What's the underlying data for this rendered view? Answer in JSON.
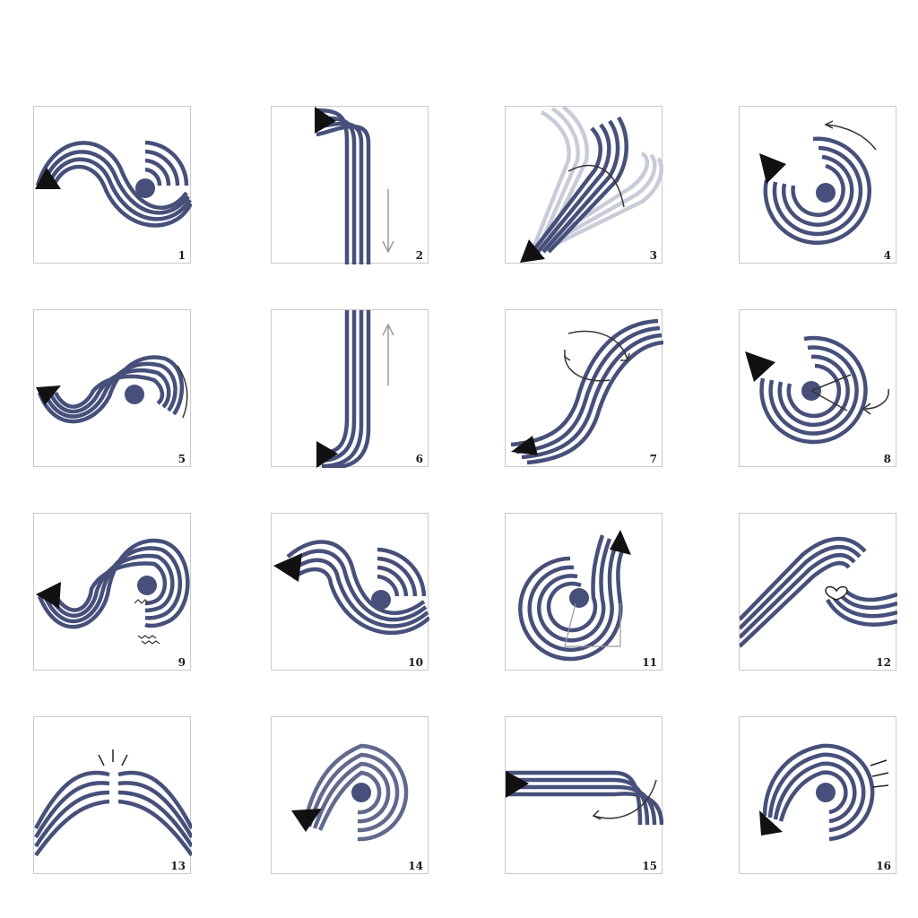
{
  "colors": {
    "stripe": "#46507a",
    "ghost": "#c9ccd8",
    "arrowhead": "#111111",
    "panel_border": "#c9c9c9",
    "note": "#555555"
  },
  "panels": [
    {
      "label": "1"
    },
    {
      "label": "2"
    },
    {
      "label": "3"
    },
    {
      "label": "4"
    },
    {
      "label": "5"
    },
    {
      "label": "6"
    },
    {
      "label": "7"
    },
    {
      "label": "8"
    },
    {
      "label": "9"
    },
    {
      "label": "10"
    },
    {
      "label": "11"
    },
    {
      "label": "12"
    },
    {
      "label": "13"
    },
    {
      "label": "14"
    },
    {
      "label": "15"
    },
    {
      "label": "16"
    }
  ]
}
